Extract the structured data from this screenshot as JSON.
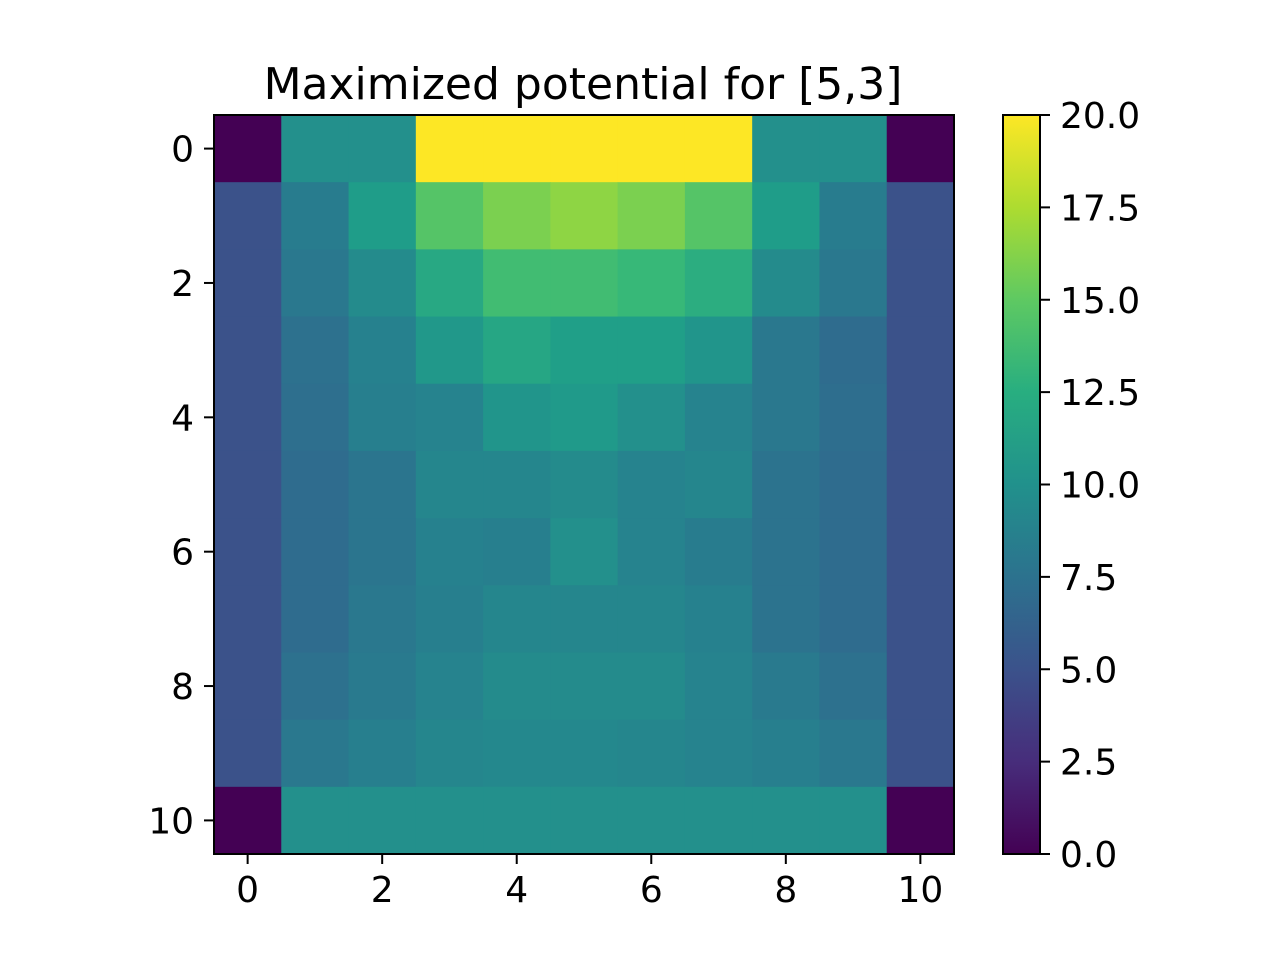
{
  "chart_data": {
    "type": "heatmap",
    "title": "Maximized potential for [5,3]",
    "xlabel": "",
    "ylabel": "",
    "x_ticks": [
      "0",
      "2",
      "4",
      "6",
      "8",
      "10"
    ],
    "y_ticks": [
      "0",
      "2",
      "4",
      "6",
      "8",
      "10"
    ],
    "x_tick_values": [
      0,
      2,
      4,
      6,
      8,
      10
    ],
    "y_tick_values": [
      0,
      2,
      4,
      6,
      8,
      10
    ],
    "xlim": [
      -0.5,
      10.5
    ],
    "ylim": [
      10.5,
      -0.5
    ],
    "colormap": "viridis",
    "colorbar": {
      "range": [
        0.0,
        20.0
      ],
      "ticks": [
        "0.0",
        "2.5",
        "5.0",
        "7.5",
        "10.0",
        "12.5",
        "15.0",
        "17.5",
        "20.0"
      ],
      "tick_values": [
        0.0,
        2.5,
        5.0,
        7.5,
        10.0,
        12.5,
        15.0,
        17.5,
        20.0
      ]
    },
    "grid": false,
    "values": [
      [
        0,
        10,
        10,
        20,
        20,
        20,
        20,
        20,
        10,
        10,
        0
      ],
      [
        5,
        8.4,
        11,
        14.6,
        16,
        16.6,
        16,
        14.6,
        11,
        8.4,
        5
      ],
      [
        5,
        8,
        9.6,
        12,
        13.8,
        13.8,
        13.4,
        12.4,
        9.6,
        8,
        5
      ],
      [
        5,
        7.4,
        8.8,
        10.6,
        11.8,
        11.2,
        11.2,
        10.4,
        8,
        7,
        5
      ],
      [
        5,
        7.3,
        8.6,
        9,
        10.4,
        10.8,
        10,
        9,
        8,
        7.2,
        5
      ],
      [
        5,
        7,
        7.8,
        9.2,
        9.2,
        9.6,
        9,
        9.2,
        7.6,
        7,
        5
      ],
      [
        5,
        7,
        7.8,
        8.8,
        8.6,
        10,
        9,
        8.4,
        7.6,
        7,
        5
      ],
      [
        5,
        7,
        8,
        8.6,
        9.2,
        9.2,
        9.2,
        8.8,
        7.6,
        7,
        5
      ],
      [
        5,
        7.4,
        8.2,
        9,
        9.6,
        9.6,
        9.6,
        9,
        8.2,
        7.4,
        5
      ],
      [
        5,
        8,
        8.6,
        9.2,
        9.4,
        9.4,
        9.2,
        9,
        8.6,
        8,
        5
      ],
      [
        0,
        10,
        10,
        10,
        10,
        10,
        10,
        10,
        10,
        10,
        0
      ]
    ]
  }
}
